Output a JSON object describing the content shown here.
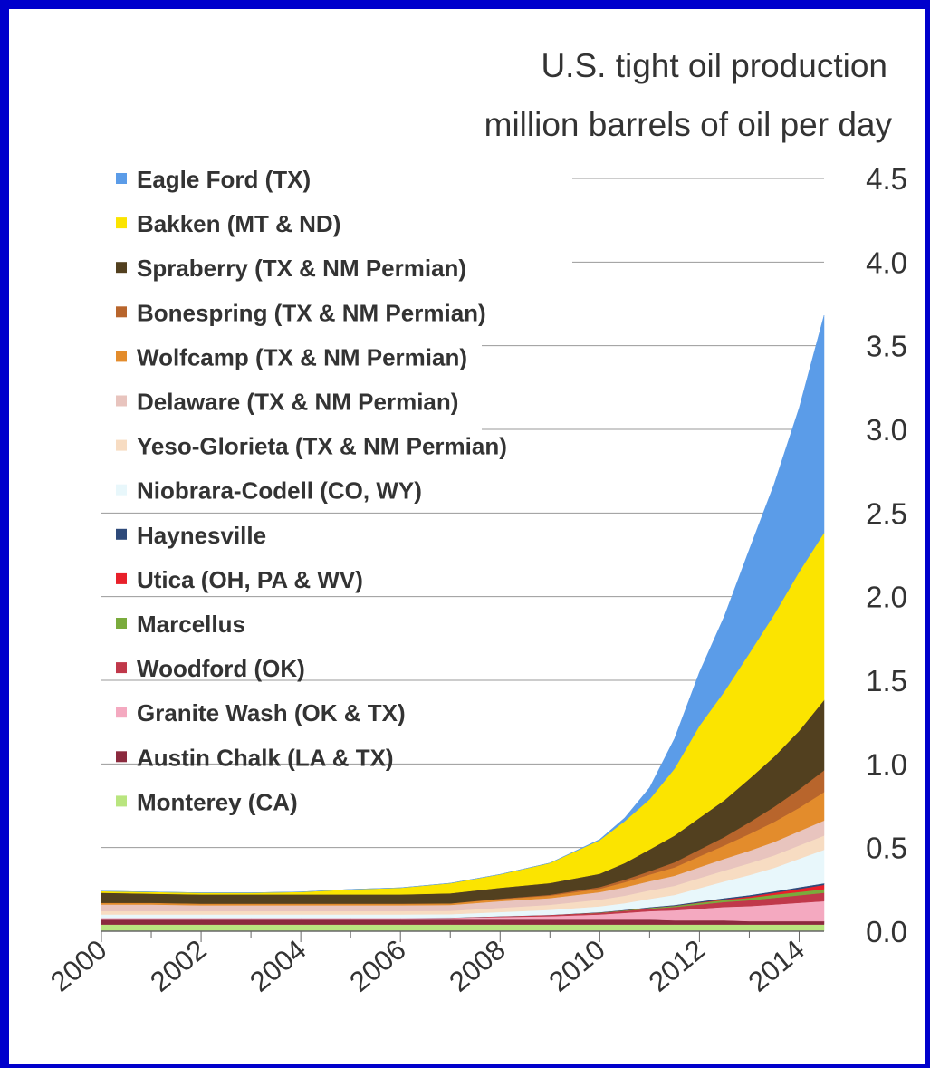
{
  "chart_data": {
    "type": "area",
    "stacked": true,
    "title": [
      "U.S. tight oil production",
      "million barrels of oil per day"
    ],
    "xlabel": "",
    "ylabel": "",
    "xlim": [
      2000,
      2014.5
    ],
    "ylim": [
      0,
      4.5
    ],
    "x_ticks": [
      "2000",
      "2002",
      "2004",
      "2006",
      "2008",
      "2010",
      "2012",
      "2014"
    ],
    "y_ticks": [
      "4.5",
      "4.0",
      "3.5",
      "3.0",
      "2.5",
      "2.0",
      "1.5",
      "1.0",
      "0.5",
      "0.0"
    ],
    "y_tick_values": [
      4.5,
      4.0,
      3.5,
      3.0,
      2.5,
      2.0,
      1.5,
      1.0,
      0.5,
      0.0
    ],
    "grid": "horizontal",
    "legend_position": "top-left",
    "x": [
      2000,
      2001,
      2002,
      2003,
      2004,
      2005,
      2006,
      2007,
      2008,
      2009,
      2010,
      2010.5,
      2011,
      2011.5,
      2012,
      2012.5,
      2013,
      2013.5,
      2014,
      2014.5
    ],
    "series": [
      {
        "name": "Monterey (CA)",
        "color": "#b9e57f",
        "values": [
          0.04,
          0.04,
          0.04,
          0.04,
          0.04,
          0.04,
          0.04,
          0.04,
          0.04,
          0.04,
          0.04,
          0.04,
          0.04,
          0.04,
          0.04,
          0.04,
          0.04,
          0.04,
          0.04,
          0.04
        ]
      },
      {
        "name": "Austin Chalk (LA & TX)",
        "color": "#8b2a3e",
        "values": [
          0.03,
          0.03,
          0.03,
          0.03,
          0.03,
          0.03,
          0.03,
          0.03,
          0.03,
          0.03,
          0.03,
          0.03,
          0.03,
          0.025,
          0.025,
          0.025,
          0.02,
          0.02,
          0.02,
          0.02
        ]
      },
      {
        "name": "Granite Wash (OK & TX)",
        "color": "#f4a9c0",
        "values": [
          0.01,
          0.01,
          0.01,
          0.01,
          0.01,
          0.01,
          0.01,
          0.01,
          0.015,
          0.02,
          0.03,
          0.04,
          0.05,
          0.06,
          0.07,
          0.08,
          0.09,
          0.1,
          0.11,
          0.12
        ]
      },
      {
        "name": "Woodford (OK)",
        "color": "#c0384a",
        "values": [
          0,
          0,
          0,
          0,
          0,
          0,
          0,
          0.002,
          0.005,
          0.008,
          0.01,
          0.012,
          0.015,
          0.02,
          0.025,
          0.03,
          0.035,
          0.04,
          0.045,
          0.05
        ]
      },
      {
        "name": "Marcellus",
        "color": "#7aab3c",
        "values": [
          0,
          0,
          0,
          0,
          0,
          0,
          0,
          0,
          0,
          0,
          0.002,
          0.003,
          0.005,
          0.007,
          0.01,
          0.012,
          0.015,
          0.018,
          0.02,
          0.022
        ]
      },
      {
        "name": "Utica (OH, PA & WV)",
        "color": "#e8202a",
        "values": [
          0,
          0,
          0,
          0,
          0,
          0,
          0,
          0,
          0,
          0,
          0,
          0,
          0,
          0,
          0.002,
          0.004,
          0.008,
          0.012,
          0.018,
          0.025
        ]
      },
      {
        "name": "Haynesville",
        "color": "#2e4a7a",
        "values": [
          0,
          0,
          0,
          0,
          0,
          0,
          0,
          0,
          0,
          0,
          0.002,
          0.003,
          0.004,
          0.005,
          0.006,
          0.007,
          0.008,
          0.009,
          0.01,
          0.01
        ]
      },
      {
        "name": "Niobrara-Codell (CO, WY)",
        "color": "#e8f7fb",
        "values": [
          0.02,
          0.02,
          0.02,
          0.02,
          0.02,
          0.02,
          0.02,
          0.02,
          0.025,
          0.03,
          0.035,
          0.04,
          0.05,
          0.06,
          0.08,
          0.1,
          0.12,
          0.14,
          0.17,
          0.2
        ]
      },
      {
        "name": "Yeso-Glorieta (TX & NM Permian)",
        "color": "#f7dcc2",
        "values": [
          0.02,
          0.02,
          0.02,
          0.02,
          0.02,
          0.02,
          0.02,
          0.02,
          0.025,
          0.03,
          0.04,
          0.045,
          0.05,
          0.055,
          0.06,
          0.065,
          0.07,
          0.075,
          0.08,
          0.085
        ]
      },
      {
        "name": "Delaware (TX & NM Permian)",
        "color": "#e8c4be",
        "values": [
          0.04,
          0.04,
          0.035,
          0.035,
          0.035,
          0.035,
          0.035,
          0.035,
          0.04,
          0.04,
          0.045,
          0.05,
          0.055,
          0.06,
          0.065,
          0.07,
          0.075,
          0.08,
          0.085,
          0.09
        ]
      },
      {
        "name": "Wolfcamp (TX & NM Permian)",
        "color": "#e38c2c",
        "values": [
          0.01,
          0.01,
          0.01,
          0.01,
          0.01,
          0.01,
          0.01,
          0.01,
          0.012,
          0.015,
          0.02,
          0.03,
          0.04,
          0.05,
          0.065,
          0.08,
          0.1,
          0.12,
          0.14,
          0.17
        ]
      },
      {
        "name": "Bonespring (TX & NM Permian)",
        "color": "#b8652c",
        "values": [
          0,
          0,
          0,
          0,
          0,
          0,
          0,
          0,
          0.003,
          0.005,
          0.01,
          0.015,
          0.02,
          0.03,
          0.04,
          0.05,
          0.07,
          0.09,
          0.11,
          0.13
        ]
      },
      {
        "name": "Spraberry (TX & NM Permian)",
        "color": "#52401f",
        "values": [
          0.06,
          0.055,
          0.055,
          0.055,
          0.055,
          0.055,
          0.055,
          0.06,
          0.065,
          0.07,
          0.08,
          0.1,
          0.13,
          0.16,
          0.19,
          0.22,
          0.26,
          0.3,
          0.35,
          0.42
        ]
      },
      {
        "name": "Bakken (MT & ND)",
        "color": "#fbe400",
        "values": [
          0.01,
          0.01,
          0.01,
          0.01,
          0.015,
          0.03,
          0.04,
          0.06,
          0.08,
          0.12,
          0.2,
          0.25,
          0.3,
          0.4,
          0.55,
          0.65,
          0.75,
          0.85,
          0.95,
          1.0
        ]
      },
      {
        "name": "Eagle Ford (TX)",
        "color": "#5b9ce8",
        "values": [
          0,
          0,
          0,
          0,
          0,
          0,
          0,
          0,
          0,
          0,
          0.005,
          0.02,
          0.07,
          0.18,
          0.32,
          0.45,
          0.62,
          0.78,
          0.98,
          1.3
        ]
      }
    ]
  },
  "legend_order": [
    "Eagle Ford (TX)",
    "Bakken (MT & ND)",
    "Spraberry (TX & NM Permian)",
    "Bonespring (TX & NM Permian)",
    "Wolfcamp (TX & NM Permian)",
    "Delaware (TX & NM Permian)",
    "Yeso-Glorieta (TX & NM Permian)",
    "Niobrara-Codell (CO, WY)",
    "Haynesville",
    "Utica (OH, PA & WV)",
    "Marcellus",
    "Woodford (OK)",
    "Granite Wash (OK & TX)",
    "Austin Chalk (LA & TX)",
    "Monterey (CA)"
  ],
  "colors": {
    "border": "#0000cc",
    "background": "#ffffff",
    "grid": "#999999",
    "text": "#333333"
  }
}
